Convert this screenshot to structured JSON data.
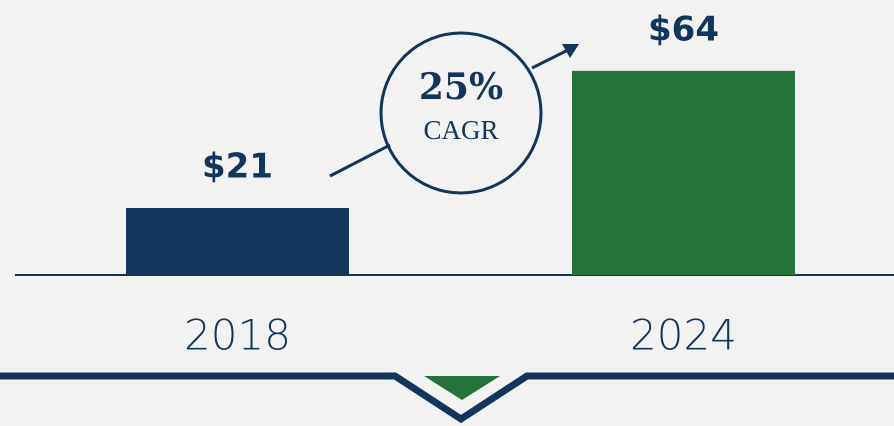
{
  "chart_data": {
    "type": "bar",
    "categories": [
      "2018",
      "2024"
    ],
    "values": [
      21,
      64
    ],
    "value_labels": [
      "$21",
      "$64"
    ],
    "colors": [
      "#12355b",
      "#24733a"
    ],
    "annotation": {
      "text": "25%",
      "subtext": "CAGR"
    }
  }
}
